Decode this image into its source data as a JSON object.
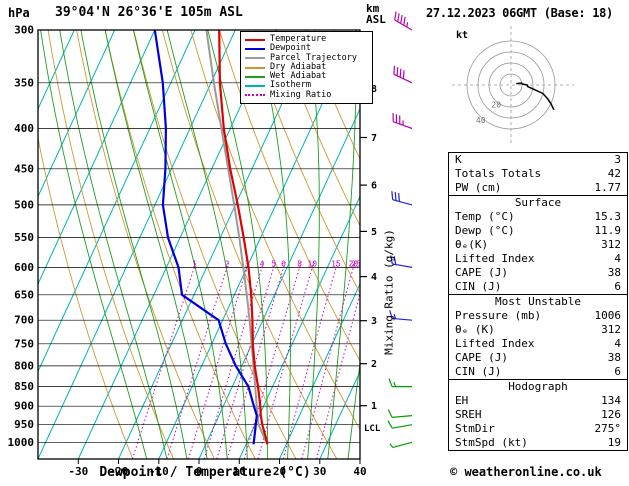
{
  "header": {
    "pressure_unit": "hPa",
    "station": "39°04'N 26°36'E 105m ASL",
    "km": "km",
    "asl": "ASL",
    "datetime": "27.12.2023 06GMT (Base: 18)"
  },
  "legend": [
    {
      "label": "Temperature",
      "color": "#e00000",
      "style": "solid"
    },
    {
      "label": "Dewpoint",
      "color": "#0000dd",
      "style": "solid"
    },
    {
      "label": "Parcel Trajectory",
      "color": "#9a9a9a",
      "style": "solid"
    },
    {
      "label": "Dry Adiabat",
      "color": "#cc9933",
      "style": "solid"
    },
    {
      "label": "Wet Adiabat",
      "color": "#1e9e1e",
      "style": "solid"
    },
    {
      "label": "Isotherm",
      "color": "#00b4b4",
      "style": "solid"
    },
    {
      "label": "Mixing Ratio",
      "color": "#cc00cc",
      "style": "dotted"
    }
  ],
  "axes": {
    "xlabel": "Dewpoint / Temperature (°C)",
    "temp_ticks": [
      -30,
      -20,
      -10,
      0,
      10,
      20,
      30,
      40
    ],
    "pressure_ticks": [
      300,
      350,
      400,
      450,
      500,
      550,
      600,
      650,
      700,
      750,
      800,
      850,
      900,
      950,
      1000
    ],
    "km_ticks": [
      1,
      2,
      3,
      4,
      5,
      6,
      7,
      8
    ],
    "mixing_ratio_label": "Mixing Ratio (g/kg)",
    "lcl_label": "LCL"
  },
  "hodograph": {
    "unit_label": "kt",
    "rings_kt": [
      10,
      20,
      30,
      40
    ],
    "ring_labels": [
      {
        "value": "20",
        "r_kt": 20
      },
      {
        "value": "40",
        "r_kt": 40
      }
    ]
  },
  "table": {
    "sections": [
      {
        "header": null,
        "rows": [
          [
            "K",
            "3"
          ],
          [
            "Totals Totals",
            "42"
          ],
          [
            "PW (cm)",
            "1.77"
          ]
        ]
      },
      {
        "header": "Surface",
        "rows": [
          [
            "Temp (°C)",
            "15.3"
          ],
          [
            "Dewp (°C)",
            "11.9"
          ],
          [
            "θₑ(K)",
            "312"
          ],
          [
            "Lifted Index",
            "4"
          ],
          [
            "CAPE (J)",
            "38"
          ],
          [
            "CIN (J)",
            "6"
          ]
        ]
      },
      {
        "header": "Most Unstable",
        "rows": [
          [
            "Pressure (mb)",
            "1006"
          ],
          [
            "θₑ (K)",
            "312"
          ],
          [
            "Lifted Index",
            "4"
          ],
          [
            "CAPE (J)",
            "38"
          ],
          [
            "CIN (J)",
            "6"
          ]
        ]
      },
      {
        "header": "Hodograph",
        "rows": [
          [
            "EH",
            "134"
          ],
          [
            "SREH",
            "126"
          ],
          [
            "StmDir",
            "275°"
          ],
          [
            "StmSpd (kt)",
            "19"
          ]
        ]
      }
    ]
  },
  "copyright": "© weatheronline.co.uk",
  "chart_data": {
    "type": "line",
    "title": "Skew-T log-P sounding, 39°04'N 26°36'E 105m ASL, 27.12.2023 06GMT",
    "x_axis": {
      "label": "Dewpoint / Temperature (°C)",
      "range": [
        -40,
        40
      ]
    },
    "y_axis": {
      "label": "hPa",
      "range": [
        300,
        1050
      ],
      "scale": "log"
    },
    "km_asl_ticks": [
      1,
      2,
      3,
      4,
      5,
      6,
      7,
      8
    ],
    "isotherm_step_c": 10,
    "dry_adiabat_step_c": 10,
    "wet_adiabat_step_c": 5,
    "mixing_ratio_lines_gkg": [
      1,
      2,
      3,
      4,
      5,
      6,
      8,
      10,
      15,
      20,
      25
    ],
    "sounding": {
      "pressure_hpa": [
        1006,
        1000,
        950,
        925,
        900,
        850,
        800,
        750,
        700,
        650,
        600,
        550,
        500,
        450,
        400,
        350,
        300
      ],
      "temperature_c": [
        15.3,
        15.0,
        11.8,
        10.4,
        9.2,
        6.4,
        3.2,
        0.2,
        -2.6,
        -5.8,
        -9.6,
        -14.2,
        -19.4,
        -25.4,
        -31.6,
        -37.8,
        -44.0
      ],
      "dewpoint_c": [
        11.9,
        11.7,
        10.2,
        9.4,
        7.6,
        4.0,
        -1.5,
        -6.5,
        -11.0,
        -23.0,
        -27.0,
        -33.0,
        -38.0,
        -41.5,
        -46.0,
        -52.0,
        -60.0
      ],
      "parcel_c": [
        15.3,
        14.8,
        10.9,
        9.6,
        8.3,
        5.7,
        2.9,
        -0.1,
        -3.3,
        -6.9,
        -10.9,
        -15.3,
        -20.3,
        -25.9,
        -32.2,
        -39.3,
        -47.2
      ]
    },
    "lcl_pressure_hpa": 958,
    "winds": [
      {
        "p": 300,
        "dir": 300,
        "spd": 45
      },
      {
        "p": 350,
        "dir": 295,
        "spd": 40
      },
      {
        "p": 400,
        "dir": 290,
        "spd": 35
      },
      {
        "p": 500,
        "dir": 285,
        "spd": 30
      },
      {
        "p": 600,
        "dir": 280,
        "spd": 20
      },
      {
        "p": 700,
        "dir": 275,
        "spd": 15
      },
      {
        "p": 850,
        "dir": 270,
        "spd": 15
      },
      {
        "p": 925,
        "dir": 265,
        "spd": 10
      },
      {
        "p": 950,
        "dir": 260,
        "spd": 10
      },
      {
        "p": 1000,
        "dir": 255,
        "spd": 5
      }
    ],
    "indices": {
      "K": 3,
      "Totals_Totals": 42,
      "PW_cm": 1.77,
      "surface": {
        "temp_c": 15.3,
        "dewp_c": 11.9,
        "theta_e_K": 312,
        "lifted_index": 4,
        "CAPE_J": 38,
        "CIN_J": 6
      },
      "most_unstable": {
        "pressure_mb": 1006,
        "theta_e_K": 312,
        "lifted_index": 4,
        "CAPE_J": 38,
        "CIN_J": 6
      },
      "hodograph": {
        "EH": 134,
        "SREH": 126,
        "StmDir_deg": 275,
        "StmSpd_kt": 19
      }
    }
  }
}
